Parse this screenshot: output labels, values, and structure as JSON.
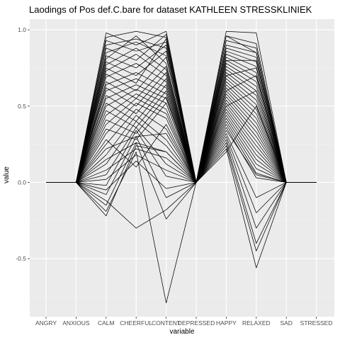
{
  "chart_data": {
    "type": "line",
    "title": "Laodings of Pos def.C.bare for dataset KATHLEEN STRESSKLINIEK",
    "xlabel": "variable",
    "ylabel": "value",
    "categories": [
      "ANGRY",
      "ANXIOUS",
      "CALM",
      "CHEERFUL",
      "CONTENT",
      "DEPRESSED",
      "HAPPY",
      "RELAXED",
      "SAD",
      "STRESSED"
    ],
    "x_tick_labels": [
      "ANGRY",
      "ANXIOUS",
      "CALM",
      "CHEERFUL",
      "CONTENT",
      "DEPRESSED",
      "HAPPY",
      "RELAXED",
      "SAD",
      "STRESSED"
    ],
    "y_ticks": [
      -0.5,
      0.0,
      0.5,
      1.0
    ],
    "y_tick_labels": [
      "-0.5",
      "0.0",
      "0.5",
      "1.0"
    ],
    "ylim": [
      -0.88,
      1.07
    ],
    "grid": true,
    "legend": "none",
    "colors": {
      "panel": "#ebebeb",
      "grid_major": "#ffffff",
      "grid_minor": "#f4f4f4",
      "line": "#000000"
    },
    "series": [
      {
        "values": [
          0,
          0,
          0.98,
          0.9,
          0.99,
          0,
          0.99,
          0.98,
          0,
          0
        ]
      },
      {
        "values": [
          0,
          0,
          0.95,
          0.99,
          0.95,
          0,
          0.96,
          0.91,
          0,
          0
        ]
      },
      {
        "values": [
          0,
          0,
          0.93,
          0.86,
          0.92,
          0,
          0.93,
          0.88,
          0,
          0
        ]
      },
      {
        "values": [
          0,
          0,
          0.9,
          0.94,
          0.88,
          0,
          0.9,
          0.85,
          0,
          0
        ]
      },
      {
        "values": [
          0,
          0,
          0.88,
          0.8,
          0.97,
          0,
          0.88,
          0.82,
          0,
          0
        ]
      },
      {
        "values": [
          0,
          0,
          0.85,
          0.92,
          0.83,
          0,
          0.86,
          0.79,
          0,
          0
        ]
      },
      {
        "values": [
          0,
          0,
          0.83,
          0.75,
          0.9,
          0,
          0.84,
          0.76,
          0,
          0
        ]
      },
      {
        "values": [
          0,
          0,
          0.81,
          0.96,
          0.78,
          0,
          0.82,
          0.72,
          0,
          0
        ]
      },
      {
        "values": [
          0,
          0,
          0.79,
          0.7,
          0.86,
          0,
          0.8,
          0.69,
          0,
          0
        ]
      },
      {
        "values": [
          0,
          0,
          0.77,
          0.88,
          0.74,
          0,
          0.78,
          0.66,
          0,
          0
        ]
      },
      {
        "values": [
          0,
          0,
          0.75,
          0.65,
          0.94,
          0,
          0.76,
          0.63,
          0,
          0
        ]
      },
      {
        "values": [
          0,
          0,
          0.73,
          0.84,
          0.7,
          0,
          0.74,
          0.6,
          0,
          0
        ]
      },
      {
        "values": [
          0,
          0,
          0.71,
          0.6,
          0.82,
          0,
          0.72,
          0.57,
          0,
          0
        ]
      },
      {
        "values": [
          0,
          0,
          0.69,
          0.78,
          0.66,
          0,
          0.7,
          0.54,
          0,
          0
        ]
      },
      {
        "values": [
          0,
          0,
          0.66,
          0.55,
          0.76,
          0,
          0.68,
          0.51,
          0,
          0
        ]
      },
      {
        "values": [
          0,
          0,
          0.64,
          0.72,
          0.62,
          0,
          0.66,
          0.48,
          0,
          0
        ]
      },
      {
        "values": [
          0,
          0,
          0.62,
          0.5,
          0.72,
          0,
          0.64,
          0.45,
          0,
          0
        ]
      },
      {
        "values": [
          0,
          0,
          0.6,
          0.68,
          0.58,
          0,
          0.62,
          0.42,
          0,
          0
        ]
      },
      {
        "values": [
          0,
          0,
          0.57,
          0.45,
          0.68,
          0,
          0.6,
          0.39,
          0,
          0
        ]
      },
      {
        "values": [
          0,
          0,
          0.55,
          0.64,
          0.55,
          0,
          0.58,
          0.36,
          0,
          0
        ]
      },
      {
        "values": [
          0,
          0,
          0.52,
          0.4,
          0.64,
          0,
          0.56,
          0.33,
          0,
          0
        ]
      },
      {
        "values": [
          0,
          0,
          0.5,
          0.61,
          0.52,
          0,
          0.54,
          0.3,
          0,
          0
        ]
      },
      {
        "values": [
          0,
          0,
          0.47,
          0.36,
          0.6,
          0,
          0.52,
          0.27,
          0,
          0
        ]
      },
      {
        "values": [
          0,
          0,
          0.44,
          0.58,
          0.48,
          0,
          0.5,
          0.24,
          0,
          0
        ]
      },
      {
        "values": [
          0,
          0,
          0.41,
          0.32,
          0.56,
          0,
          0.48,
          0.21,
          0,
          0
        ]
      },
      {
        "values": [
          0,
          0,
          0.38,
          0.55,
          0.45,
          0,
          0.46,
          0.18,
          0,
          0
        ]
      },
      {
        "values": [
          0,
          0,
          0.35,
          0.28,
          0.52,
          0,
          0.44,
          0.15,
          0,
          0
        ]
      },
      {
        "values": [
          0,
          0,
          0.32,
          0.52,
          0.42,
          0,
          0.42,
          0.12,
          0,
          0
        ]
      },
      {
        "values": [
          0,
          0,
          0.28,
          0.1,
          0.38,
          0,
          0.4,
          0.09,
          0,
          0
        ]
      },
      {
        "values": [
          0,
          0,
          0.25,
          0.48,
          0.35,
          0,
          0.38,
          0.06,
          0,
          0
        ]
      },
      {
        "values": [
          0,
          0,
          0.22,
          0.3,
          0.32,
          0,
          0.36,
          0.03,
          0,
          0
        ]
      },
      {
        "values": [
          0,
          0,
          0.18,
          0.44,
          0.28,
          0,
          0.34,
          0.05,
          0,
          0
        ]
      },
      {
        "values": [
          0,
          0,
          0.15,
          0.26,
          0.2,
          0,
          0.32,
          -0.1,
          0,
          0
        ]
      },
      {
        "values": [
          0,
          0,
          0.12,
          0.4,
          0.24,
          0,
          0.3,
          -0.2,
          0,
          0
        ]
      },
      {
        "values": [
          0,
          0,
          0.08,
          0.22,
          0.16,
          0,
          0.28,
          -0.3,
          0,
          0
        ]
      },
      {
        "values": [
          0,
          0,
          0.05,
          0.36,
          0.12,
          0,
          0.26,
          -0.4,
          0,
          0
        ]
      },
      {
        "values": [
          0,
          0,
          0.02,
          0.18,
          0.08,
          0,
          0.24,
          -0.45,
          0,
          0
        ]
      },
      {
        "values": [
          0,
          0,
          -0.02,
          0.34,
          0.04,
          0,
          0.22,
          -0.56,
          0,
          0
        ]
      },
      {
        "values": [
          0,
          0,
          -0.05,
          0.14,
          -0.04,
          0,
          0.2,
          0.5,
          0,
          0
        ]
      },
      {
        "values": [
          0,
          0,
          -0.08,
          0.3,
          -0.1,
          0,
          0.5,
          0.6,
          0,
          0
        ]
      },
      {
        "values": [
          0,
          0,
          -0.12,
          -0.3,
          -0.18,
          0,
          0.6,
          0.7,
          0,
          0
        ]
      },
      {
        "values": [
          0,
          0,
          -0.15,
          0.26,
          -0.24,
          0,
          0.7,
          0.75,
          0,
          0
        ]
      },
      {
        "values": [
          0,
          0,
          -0.19,
          0.2,
          -0.79,
          0,
          0.8,
          0.8,
          0,
          0
        ]
      },
      {
        "values": [
          0,
          0,
          -0.22,
          0.24,
          0.2,
          0,
          0.96,
          0.85,
          0,
          0
        ]
      }
    ]
  }
}
